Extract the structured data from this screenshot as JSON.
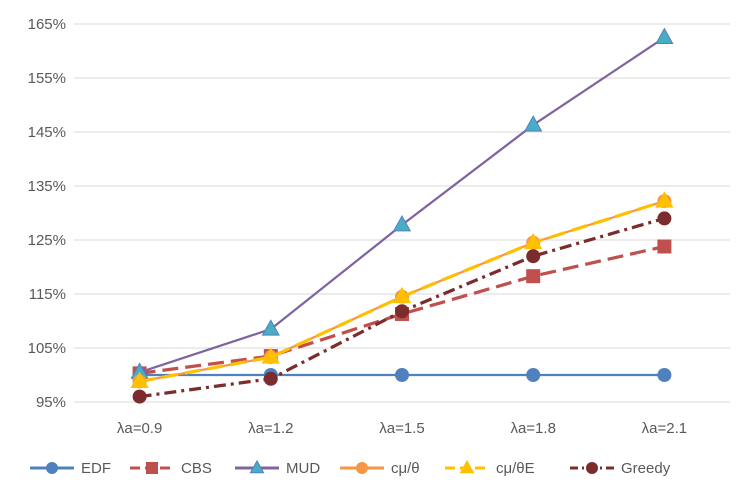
{
  "chart_data": {
    "type": "line",
    "title": "",
    "xlabel": "",
    "ylabel": "",
    "categories": [
      "λa=0.9",
      "λa=1.2",
      "λa=1.5",
      "λa=1.8",
      "λa=2.1"
    ],
    "ylim": [
      95,
      165
    ],
    "yticks": [
      95,
      105,
      115,
      125,
      135,
      145,
      155,
      165
    ],
    "ytick_labels": [
      "95%",
      "105%",
      "115%",
      "125%",
      "135%",
      "145%",
      "155%",
      "165%"
    ],
    "grid": "horizontal",
    "legend_position": "bottom",
    "series": [
      {
        "name": "EDF",
        "values": [
          100,
          100,
          100,
          100,
          100
        ],
        "color": "#4E81BD",
        "dash": "solid",
        "marker": "circle"
      },
      {
        "name": "CBS",
        "values": [
          100.3,
          103.5,
          111.3,
          118.3,
          123.8
        ],
        "color": "#C0504D",
        "dash": "long-dash",
        "marker": "square"
      },
      {
        "name": "MUD",
        "values": [
          100.5,
          108.5,
          127.8,
          146.3,
          162.5
        ],
        "color": "#8064A2",
        "dash": "solid",
        "marker": "triangle"
      },
      {
        "name": "cμ/θ",
        "values": [
          98.8,
          103.3,
          114.5,
          124.5,
          132.2
        ],
        "color": "#F79646",
        "dash": "solid",
        "marker": "circle"
      },
      {
        "name": "cμ/θE",
        "values": [
          98.8,
          103.3,
          114.5,
          124.5,
          132.2
        ],
        "color": "#FFC000",
        "dash": "long-dash",
        "marker": "triangle"
      },
      {
        "name": "Greedy",
        "values": [
          96,
          99.3,
          111.8,
          122,
          129
        ],
        "color": "#7B2C2C",
        "dash": "dash-dot",
        "marker": "circle"
      }
    ]
  }
}
